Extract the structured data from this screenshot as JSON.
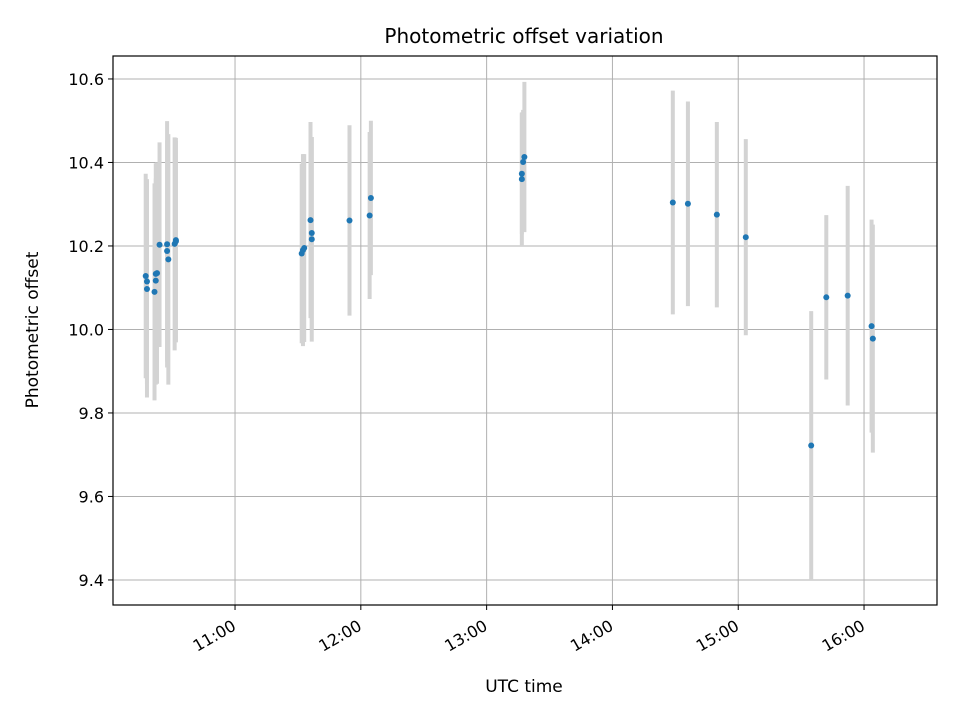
{
  "chart_data": {
    "type": "scatter",
    "title": "Photometric offset variation",
    "xlabel": "UTC time",
    "ylabel": "Photometric offset",
    "x_unit": "UTC hour of day",
    "xlim": [
      10.03,
      16.58
    ],
    "ylim": [
      9.34,
      10.655
    ],
    "x_ticks": [
      {
        "value": 11,
        "label": "11:00"
      },
      {
        "value": 12,
        "label": "12:00"
      },
      {
        "value": 13,
        "label": "13:00"
      },
      {
        "value": 14,
        "label": "14:00"
      },
      {
        "value": 15,
        "label": "15:00"
      },
      {
        "value": 16,
        "label": "16:00"
      }
    ],
    "y_ticks": [
      {
        "value": 9.4,
        "label": "9.4"
      },
      {
        "value": 9.6,
        "label": "9.6"
      },
      {
        "value": 9.8,
        "label": "9.8"
      },
      {
        "value": 10.0,
        "label": "10.0"
      },
      {
        "value": 10.2,
        "label": "10.2"
      },
      {
        "value": 10.4,
        "label": "10.4"
      },
      {
        "value": 10.6,
        "label": "10.6"
      }
    ],
    "grid": true,
    "colors": {
      "point": "#1f77b4",
      "error_bar": "#d3d3d3",
      "grid": "#b0b0b0"
    },
    "points": [
      {
        "x": 10.29,
        "y": 10.128,
        "err": 0.245
      },
      {
        "x": 10.3,
        "y": 10.115,
        "err": 0.245
      },
      {
        "x": 10.3,
        "y": 10.097,
        "err": 0.26
      },
      {
        "x": 10.36,
        "y": 10.09,
        "err": 0.26
      },
      {
        "x": 10.37,
        "y": 10.117,
        "err": 0.245
      },
      {
        "x": 10.37,
        "y": 10.133,
        "err": 0.265
      },
      {
        "x": 10.38,
        "y": 10.135,
        "err": 0.265
      },
      {
        "x": 10.4,
        "y": 10.203,
        "err": 0.245
      },
      {
        "x": 10.46,
        "y": 10.204,
        "err": 0.295
      },
      {
        "x": 10.46,
        "y": 10.188,
        "err": 0.265
      },
      {
        "x": 10.47,
        "y": 10.168,
        "err": 0.3
      },
      {
        "x": 10.52,
        "y": 10.205,
        "err": 0.255
      },
      {
        "x": 10.53,
        "y": 10.211,
        "err": 0.24
      },
      {
        "x": 10.53,
        "y": 10.214,
        "err": 0.245
      },
      {
        "x": 11.53,
        "y": 10.182,
        "err": 0.215
      },
      {
        "x": 11.54,
        "y": 10.19,
        "err": 0.23
      },
      {
        "x": 11.55,
        "y": 10.195,
        "err": 0.225
      },
      {
        "x": 11.6,
        "y": 10.262,
        "err": 0.235
      },
      {
        "x": 11.61,
        "y": 10.231,
        "err": 0.23
      },
      {
        "x": 11.61,
        "y": 10.216,
        "err": 0.245
      },
      {
        "x": 11.91,
        "y": 10.261,
        "err": 0.228
      },
      {
        "x": 12.07,
        "y": 10.273,
        "err": 0.2
      },
      {
        "x": 12.08,
        "y": 10.315,
        "err": 0.185
      },
      {
        "x": 13.28,
        "y": 10.36,
        "err": 0.16
      },
      {
        "x": 13.28,
        "y": 10.373,
        "err": 0.145
      },
      {
        "x": 13.29,
        "y": 10.401,
        "err": 0.125
      },
      {
        "x": 13.3,
        "y": 10.413,
        "err": 0.18
      },
      {
        "x": 14.48,
        "y": 10.304,
        "err": 0.268
      },
      {
        "x": 14.6,
        "y": 10.301,
        "err": 0.245
      },
      {
        "x": 14.83,
        "y": 10.275,
        "err": 0.222
      },
      {
        "x": 15.06,
        "y": 10.221,
        "err": 0.235
      },
      {
        "x": 15.58,
        "y": 9.722,
        "err": 0.322
      },
      {
        "x": 15.7,
        "y": 10.077,
        "err": 0.197
      },
      {
        "x": 15.87,
        "y": 10.081,
        "err": 0.263
      },
      {
        "x": 16.06,
        "y": 10.008,
        "err": 0.255
      },
      {
        "x": 16.07,
        "y": 9.978,
        "err": 0.273
      }
    ]
  }
}
